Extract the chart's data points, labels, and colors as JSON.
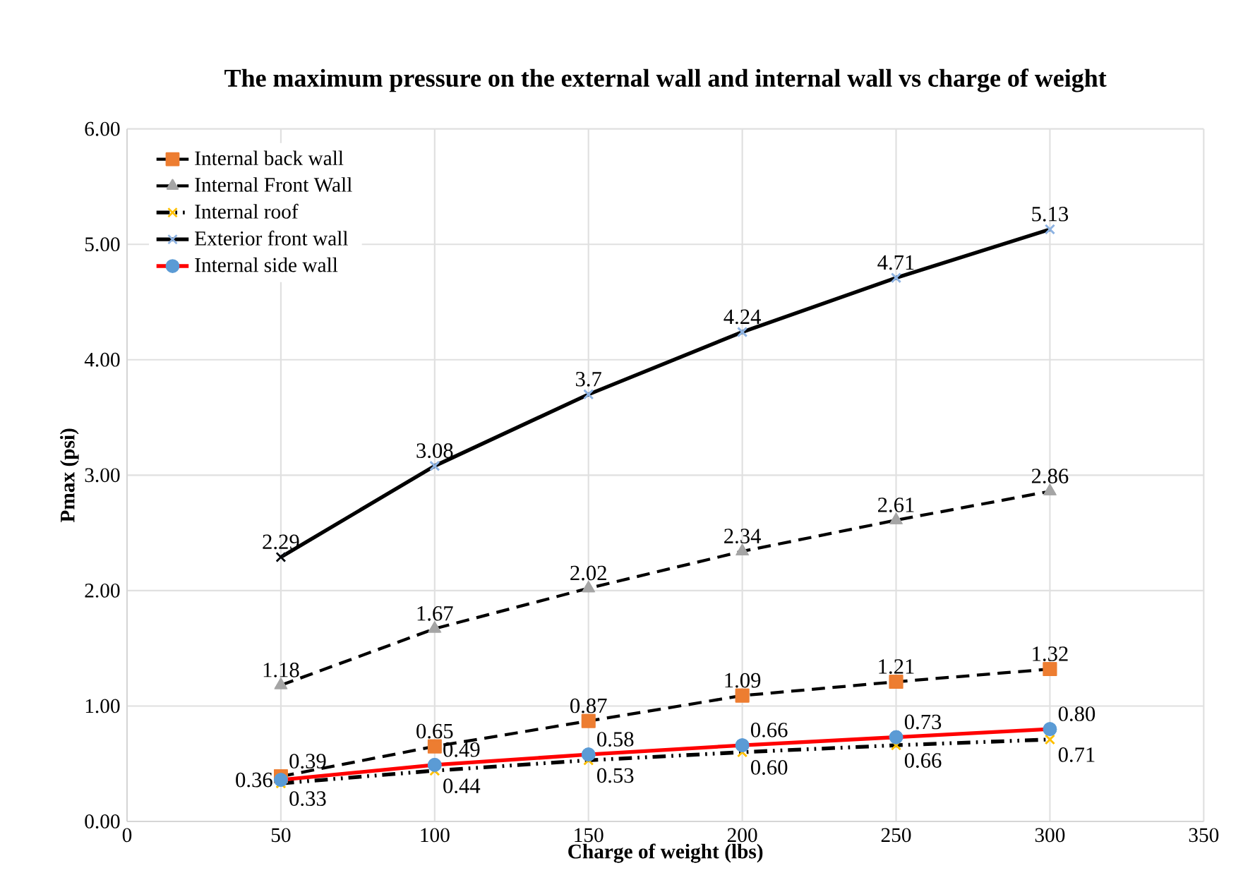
{
  "chart_data": {
    "type": "line",
    "title": "The maximum pressure on the external wall and internal wall vs charge of weight",
    "xlabel": "Charge of weight (lbs)",
    "ylabel": "Pmax (psi)",
    "x": [
      50,
      100,
      150,
      200,
      250,
      300
    ],
    "xlim": [
      0,
      350
    ],
    "xticks": [
      0,
      50,
      100,
      150,
      200,
      250,
      300,
      350
    ],
    "ylim": [
      0,
      6
    ],
    "yticks": [
      {
        "value": 0,
        "label": "0.00"
      },
      {
        "value": 1,
        "label": "1.00"
      },
      {
        "value": 2,
        "label": "2.00"
      },
      {
        "value": 3,
        "label": "3.00"
      },
      {
        "value": 4,
        "label": "4.00"
      },
      {
        "value": 5,
        "label": "5.00"
      },
      {
        "value": 6,
        "label": "6.00"
      }
    ],
    "grid": true,
    "legend": "top left",
    "series": [
      {
        "name": "Internal back wall",
        "color": "#000000",
        "colors": [
          "#ed7d31",
          "#ed7d31",
          "#ed7d31",
          "#ed7d31",
          "#ed7d31",
          "#ed7d31"
        ],
        "marker": "square",
        "line_style": "dashed",
        "values": [
          0.39,
          0.65,
          0.87,
          1.09,
          1.21,
          1.32
        ],
        "value_labels": [
          "0.39",
          "0.65",
          "0.87",
          "1.09",
          "1.21",
          "1.32"
        ]
      },
      {
        "name": "Internal Front Wall",
        "color": "#000000",
        "colors": [
          "#a5a5a5",
          "#a5a5a5",
          "#a5a5a5",
          "#a5a5a5",
          "#a5a5a5",
          "#a5a5a5"
        ],
        "marker": "triangle",
        "line_style": "dashed",
        "values": [
          1.18,
          1.67,
          2.02,
          2.34,
          2.61,
          2.86
        ],
        "value_labels": [
          "1.18",
          "1.67",
          "2.02",
          "2.34",
          "2.61",
          "2.86"
        ]
      },
      {
        "name": "Internal roof",
        "color": "#000000",
        "colors": [
          "#ffc000",
          "#ffc000",
          "#ffc000",
          "#ffc000",
          "#ffc000",
          "#ffc000"
        ],
        "marker": "cross",
        "line_style": "dotted",
        "values": [
          0.33,
          0.44,
          0.53,
          0.6,
          0.66,
          0.71
        ],
        "value_labels": [
          "0.33",
          "0.44",
          "0.53",
          "0.60",
          "0.66",
          "0.71"
        ]
      },
      {
        "name": "Exterior front wall",
        "color": "#000000",
        "colors": [
          "#000000",
          "#8fb4e3",
          "#8fb4e3",
          "#8fb4e3",
          "#8fb4e3",
          "#8fb4e3"
        ],
        "marker": "cross",
        "line_style": "solid",
        "values": [
          2.29,
          3.08,
          3.7,
          4.24,
          4.71,
          5.13
        ],
        "value_labels": [
          "2.29",
          "3.08",
          "3.7",
          "4.24",
          "4.71",
          "5.13"
        ]
      },
      {
        "name": "Internal side wall",
        "color": "#ff0000",
        "colors": [
          "#5b9bd5",
          "#5b9bd5",
          "#5b9bd5",
          "#5b9bd5",
          "#5b9bd5",
          "#5b9bd5"
        ],
        "marker": "circle",
        "line_style": "solid",
        "values": [
          0.36,
          0.49,
          0.58,
          0.66,
          0.73,
          0.8
        ],
        "value_labels": [
          "0.36",
          "0.49",
          "0.58",
          "0.66",
          "0.73",
          "0.80"
        ]
      }
    ]
  }
}
